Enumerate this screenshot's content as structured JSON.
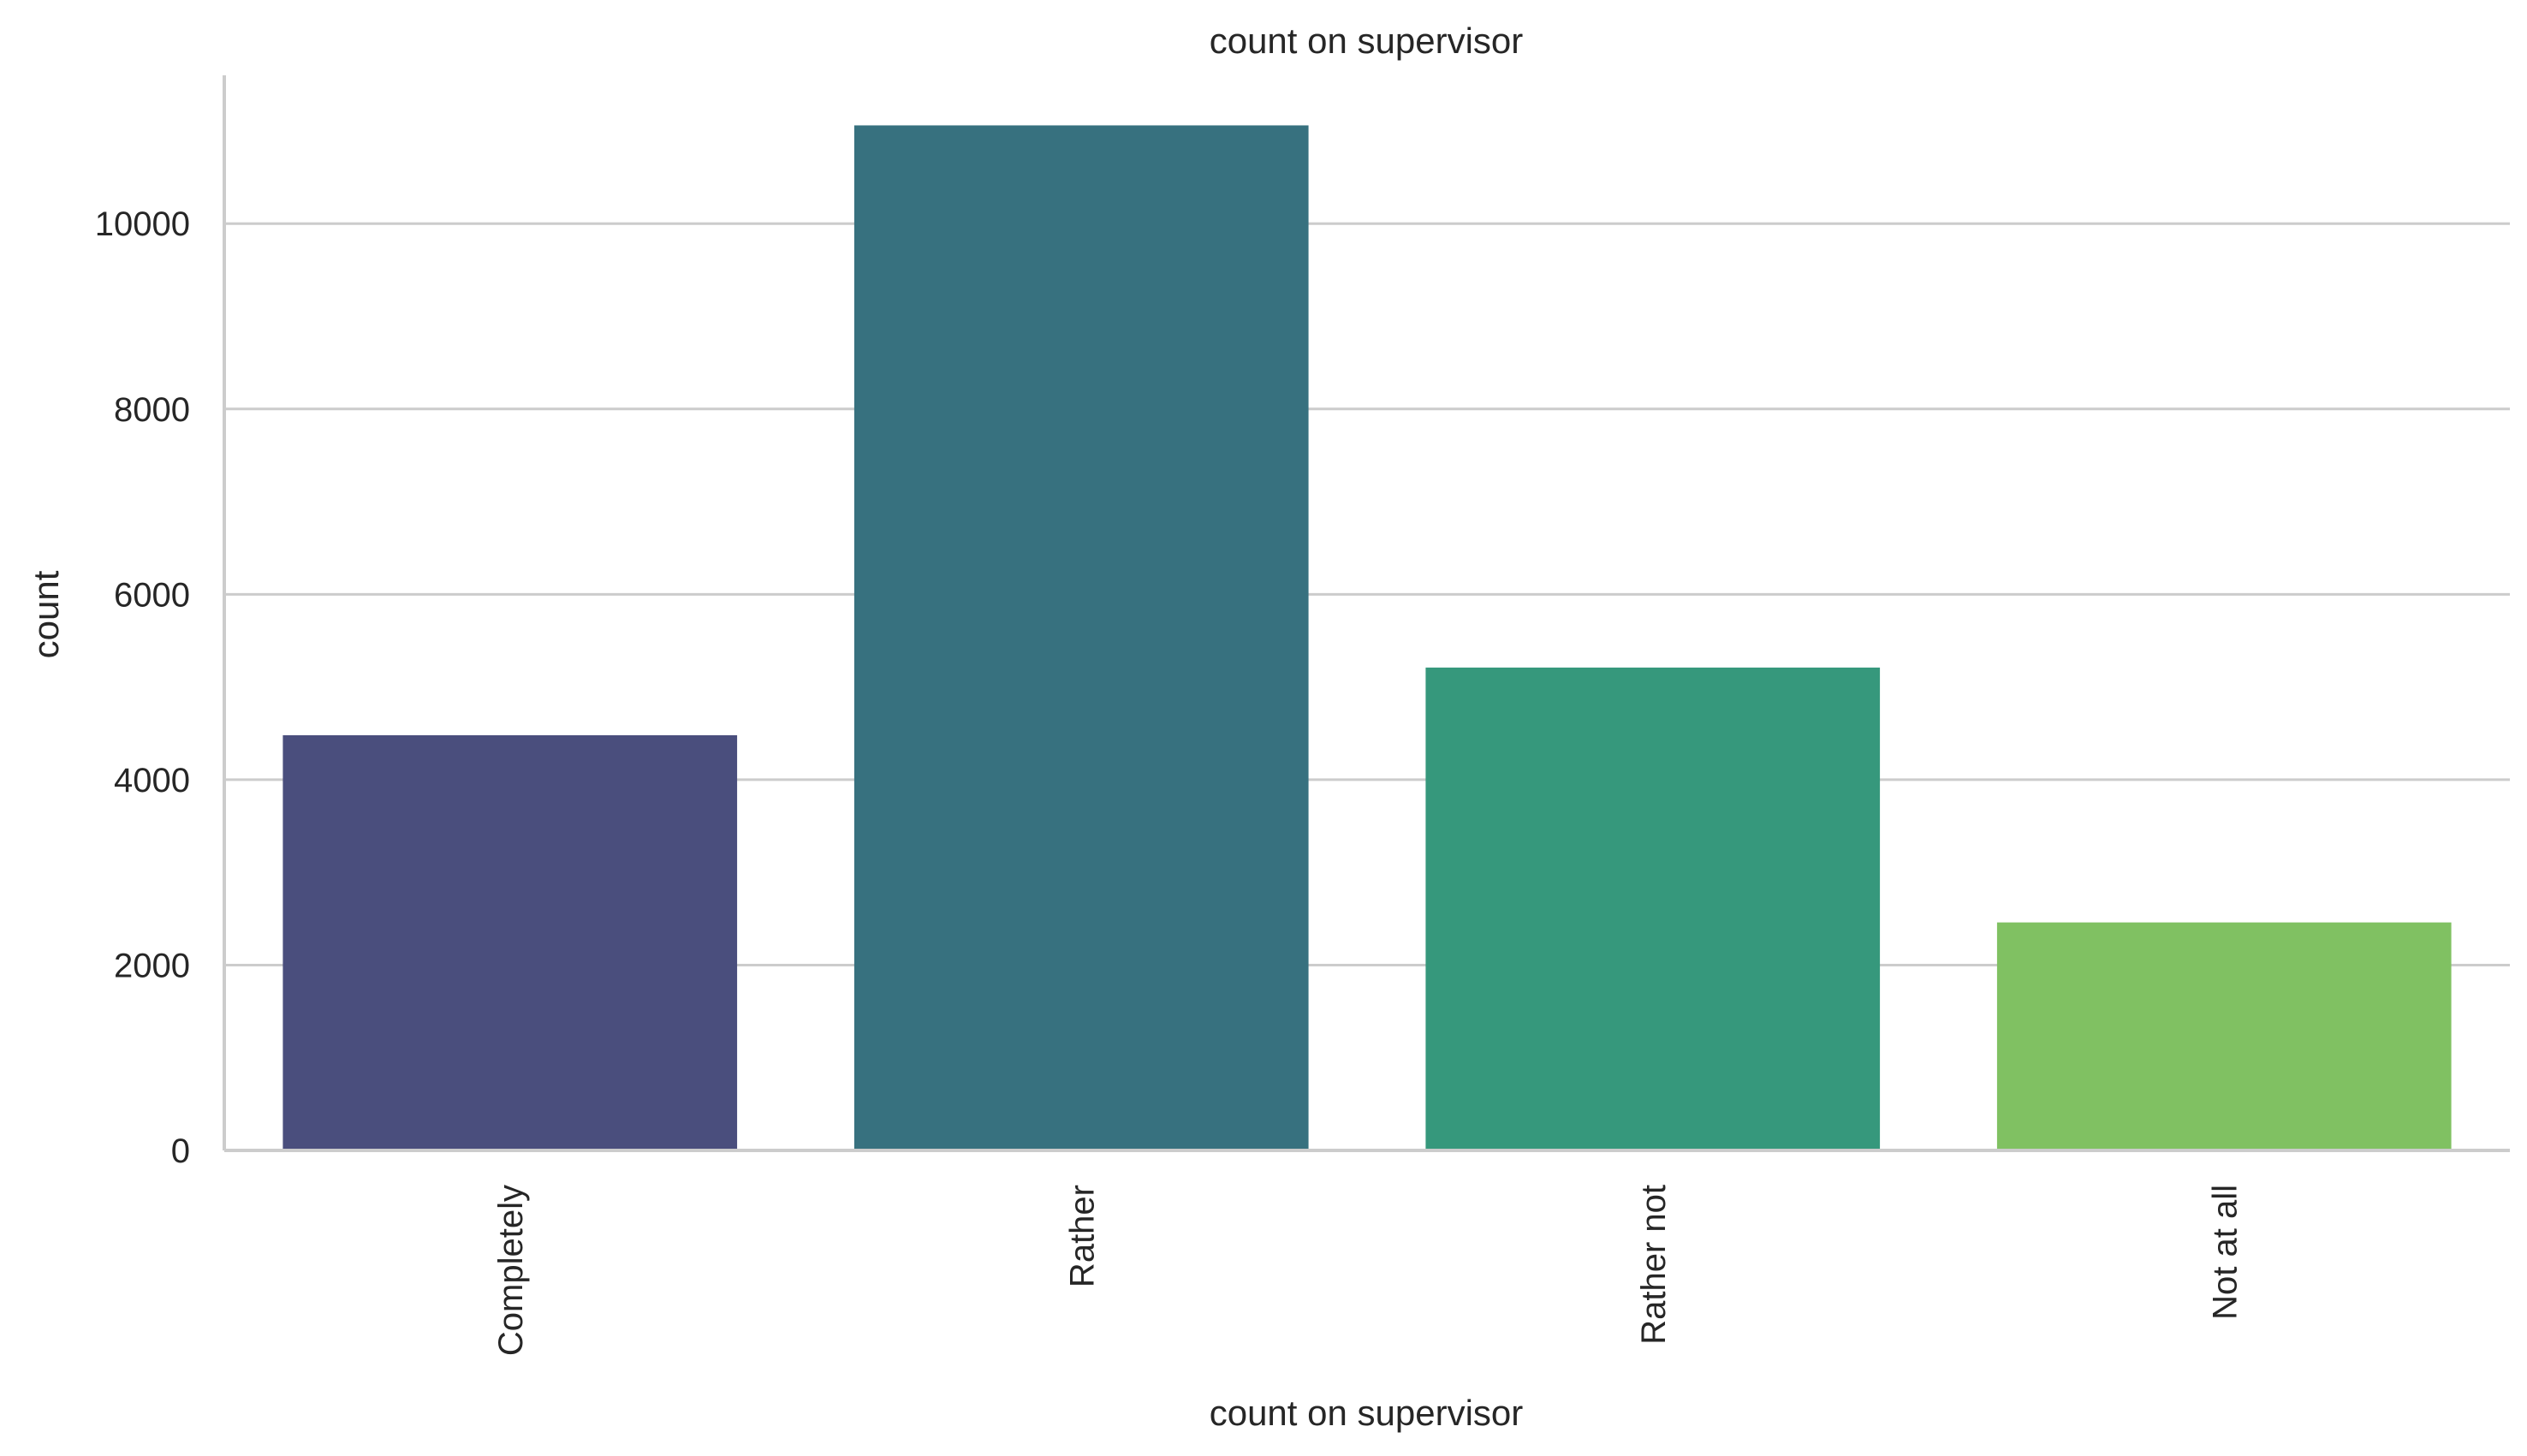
{
  "chart_data": {
    "type": "bar",
    "title": "count on supervisor",
    "xlabel": "count on supervisor",
    "ylabel": "count",
    "categories": [
      "Completely",
      "Rather",
      "Rather not",
      "Not at all"
    ],
    "values": [
      4480,
      11060,
      5210,
      2460
    ],
    "colors": [
      "#4a4e7d",
      "#37717f",
      "#36987c",
      "#80c162"
    ],
    "yticks": [
      0,
      2000,
      4000,
      6000,
      8000,
      10000
    ],
    "ylim": [
      0,
      11600
    ],
    "grid": "horizontal",
    "legend": "none",
    "x_tick_rotation": "vertical"
  }
}
